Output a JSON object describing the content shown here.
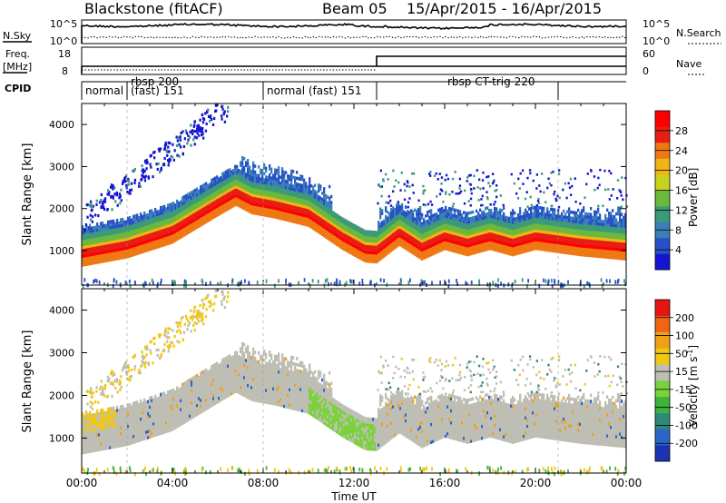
{
  "header": {
    "radar": "Blackstone (fitACF)",
    "beam": "Beam 05",
    "dates": "15/Apr/2015 - 16/Apr/2015"
  },
  "status": {
    "nsky_label": "N.Sky",
    "nsky_ticks": [
      "10^5",
      "10^0"
    ],
    "nsearch_label": "N.Search",
    "nsearch_ticks": [
      "10^5",
      "10^0"
    ],
    "freq_label": "Freq.",
    "freq_unit": "[MHz]",
    "freq_ticks": [
      18,
      8
    ],
    "nave_label": "Nave",
    "nave_ticks": [
      60,
      0
    ],
    "cpid_label": "CPID",
    "nave_step": {
      "before": 10,
      "after": 50,
      "time_h": 13.0
    },
    "freq_level": 10
  },
  "cpid_segments": [
    {
      "label": "normal",
      "start_h": 0.0,
      "end_h": 2.0
    },
    {
      "label": "rbsp 200\n(fast) 151",
      "start_h": 2.0,
      "end_h": 8.0
    },
    {
      "label": "normal (fast) 151",
      "start_h": 8.0,
      "end_h": 13.0
    },
    {
      "label": "rbsp CT-trig 220",
      "start_h": 13.0,
      "end_h": 21.0
    }
  ],
  "colorbars": [
    {
      "name": "Power",
      "unit": "[dB]",
      "ticks": [
        "4",
        "8",
        "12",
        "16",
        "20",
        "24",
        "28"
      ],
      "colors": [
        "#1414d2",
        "#2850c8",
        "#3a7fb8",
        "#3c9a78",
        "#6ab83c",
        "#c8d21e",
        "#f0b414",
        "#f07814",
        "#e61e14",
        "#ff0000"
      ]
    },
    {
      "name": "Velocity",
      "unit": "[m s",
      "unit_sup": "-1",
      "unit_end": "]",
      "ticks": [
        "200",
        "100",
        "50",
        "15",
        "-15",
        "-50",
        "-100",
        "-200"
      ],
      "colors": [
        "#1e32b4",
        "#2a66c8",
        "#2e8a78",
        "#3cb43c",
        "#7ad23c",
        "#bebeb4",
        "#f0c814",
        "#f0a014",
        "#f06414",
        "#e61414"
      ]
    }
  ],
  "chart_data": [
    {
      "type": "heatmap",
      "title": "Power",
      "xlabel": "Time UT",
      "ylabel": "Slant Range [km]",
      "x_ticks": [
        "00:00",
        "04:00",
        "08:00",
        "12:00",
        "16:00",
        "20:00",
        "00:00"
      ],
      "y_ticks": [
        1000,
        2000,
        3000,
        4000
      ],
      "xlim_h": [
        0,
        24
      ],
      "ylim_km": [
        180,
        4500
      ],
      "main_band_center_km": [
        [
          0,
          900
        ],
        [
          2,
          1100
        ],
        [
          4,
          1450
        ],
        [
          6,
          2100
        ],
        [
          6.8,
          2350
        ],
        [
          7.5,
          2150
        ],
        [
          8.5,
          2050
        ],
        [
          10,
          1850
        ],
        [
          11.5,
          1300
        ],
        [
          12.5,
          1000
        ],
        [
          13,
          980
        ],
        [
          14,
          1400
        ],
        [
          15,
          1050
        ],
        [
          16,
          1300
        ],
        [
          17,
          1150
        ],
        [
          18,
          1300
        ],
        [
          19,
          1150
        ],
        [
          20,
          1300
        ],
        [
          22,
          1150
        ],
        [
          24,
          1050
        ]
      ],
      "color_scale": "Power [dB]"
    },
    {
      "type": "heatmap",
      "title": "Velocity",
      "xlabel": "Time UT",
      "ylabel": "Slant Range [km]",
      "x_ticks": [
        "00:00",
        "04:00",
        "08:00",
        "12:00",
        "16:00",
        "20:00",
        "00:00"
      ],
      "y_ticks": [
        1000,
        2000,
        3000,
        4000
      ],
      "xlim_h": [
        0,
        24
      ],
      "ylim_km": [
        180,
        4500
      ],
      "color_scale": "Velocity [m s-1]"
    }
  ]
}
